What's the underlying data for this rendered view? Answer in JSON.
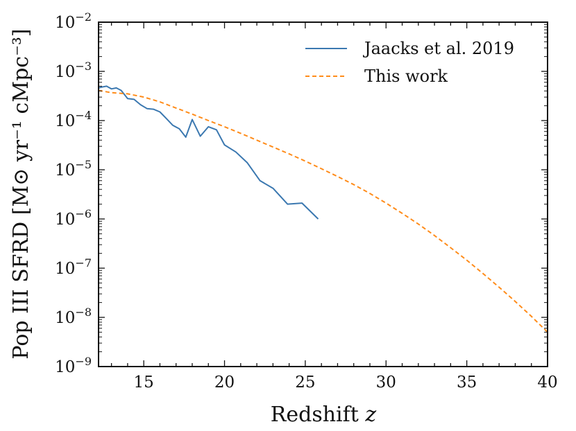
{
  "chart_data": {
    "type": "line",
    "title": "",
    "xlabel": "Redshift",
    "xlabel_symbol": "z",
    "ylabel_prefix": "Pop III SFRD",
    "ylabel_unit": "M⊙ yr⁻¹ cMpc⁻³",
    "xlim": [
      12.2,
      40
    ],
    "ylim": [
      1e-09,
      0.01
    ],
    "yscale": "log",
    "x_ticks": [
      15,
      20,
      25,
      30,
      35,
      40
    ],
    "y_tick_exponents": [
      -9,
      -8,
      -7,
      -6,
      -5,
      -4,
      -3,
      -2
    ],
    "legend_position": "top-right",
    "series": [
      {
        "name": "Jaacks et al. 2019",
        "color": "#3b78b0",
        "style": "solid",
        "x": [
          12.2,
          12.4,
          12.7,
          13.0,
          13.3,
          13.6,
          14.0,
          14.4,
          14.8,
          15.2,
          15.6,
          16.0,
          16.4,
          16.8,
          17.2,
          17.6,
          18.0,
          18.5,
          19.0,
          19.5,
          20.0,
          20.7,
          21.4,
          22.2,
          23.0,
          23.9,
          24.8,
          25.8
        ],
        "y": [
          0.00046,
          0.00048,
          0.0005,
          0.00044,
          0.00046,
          0.00041,
          0.00028,
          0.00027,
          0.00021,
          0.000175,
          0.00017,
          0.00015,
          0.00011,
          8e-05,
          6.8e-05,
          4.6e-05,
          0.000105,
          4.8e-05,
          7.5e-05,
          6.5e-05,
          3.2e-05,
          2.3e-05,
          1.4e-05,
          6e-06,
          4.2e-06,
          2e-06,
          2.1e-06,
          1e-06
        ]
      },
      {
        "name": "This work",
        "color": "#ff8c1a",
        "style": "dashed",
        "x": [
          12.2,
          13.0,
          14.0,
          15.0,
          16.0,
          17.0,
          18.0,
          19.0,
          20.0,
          21.0,
          22.0,
          23.0,
          24.0,
          25.0,
          26.0,
          27.0,
          28.0,
          29.0,
          30.0,
          31.0,
          32.0,
          33.0,
          34.0,
          35.0,
          36.0,
          37.0,
          38.0,
          39.0,
          40.0
        ],
        "y": [
          0.00041,
          0.00037,
          0.00035,
          0.0003,
          0.00024,
          0.00018,
          0.000135,
          0.0001,
          7.5e-05,
          5.5e-05,
          4e-05,
          2.9e-05,
          2.1e-05,
          1.5e-05,
          1.05e-05,
          7.3e-06,
          5e-06,
          3.3e-06,
          2.1e-06,
          1.3e-06,
          7.9e-07,
          4.6e-07,
          2.6e-07,
          1.45e-07,
          7.8e-08,
          4.1e-08,
          2.1e-08,
          1.05e-08,
          5e-09
        ]
      }
    ]
  }
}
